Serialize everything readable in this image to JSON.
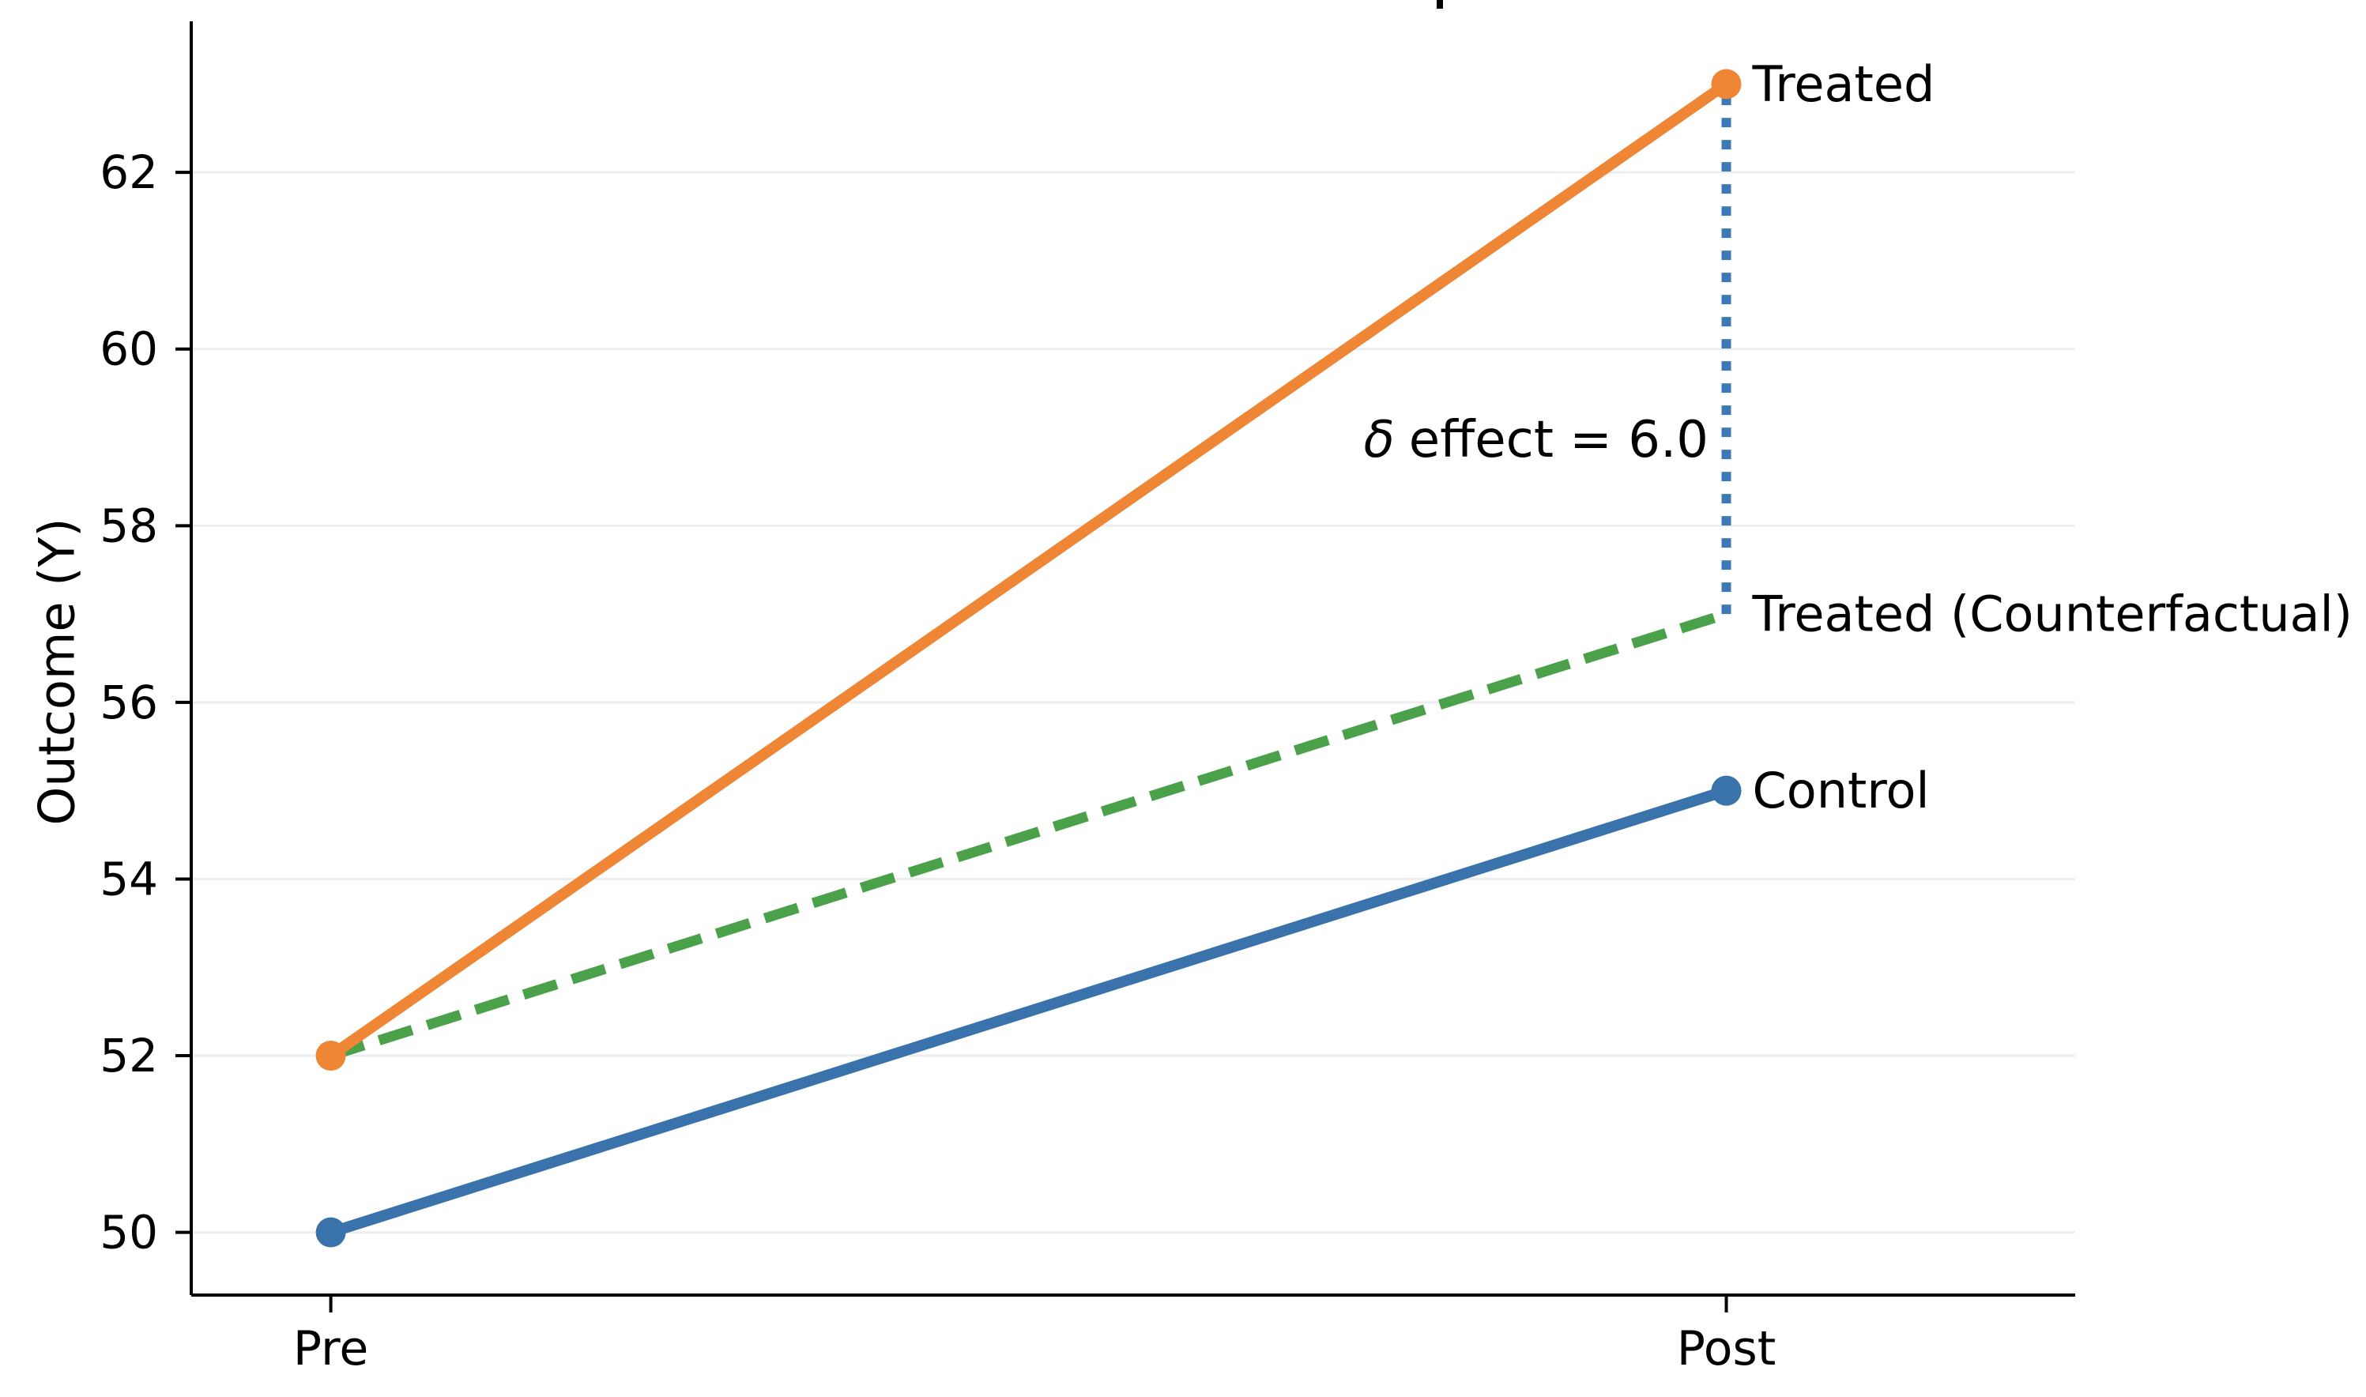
{
  "figure": {
    "background": "#ffffff",
    "text_color": "#000000",
    "grid_color": "#eeeeee",
    "axis_color": "#000000"
  },
  "chart_data": {
    "type": "line",
    "categories": [
      "Pre",
      "Post"
    ],
    "xlabel": "",
    "ylabel": "Outcome (Y)",
    "yticks": [
      50,
      52,
      54,
      56,
      58,
      60,
      62
    ],
    "ylim": [
      49.29,
      63.71
    ],
    "xlim": [
      -0.1,
      1.25
    ],
    "grid": "horizontal",
    "series": [
      {
        "id": "counterfactual",
        "label": "Treated (Counterfactual)",
        "x": [
          "Pre",
          "Post"
        ],
        "values": [
          52,
          57
        ],
        "color": "#4aa14a",
        "line_style": "dashed",
        "markers": false
      },
      {
        "id": "control",
        "label": "Control",
        "x": [
          "Pre",
          "Post"
        ],
        "values": [
          50,
          55
        ],
        "color": "#3a72ab",
        "line_style": "solid",
        "markers": true
      },
      {
        "id": "treated",
        "label": "Treated",
        "x": [
          "Pre",
          "Post"
        ],
        "values": [
          52,
          63
        ],
        "color": "#ef8636",
        "line_style": "solid",
        "markers": true
      }
    ],
    "effect_annotation": {
      "x_category": "Post",
      "y_from": 57,
      "y_to": 63,
      "effect_value": 6.0,
      "line_color": "#3c79b6",
      "line_style": "dotted",
      "label_symbol": "δ",
      "label_text": "effect = 6.0"
    }
  }
}
